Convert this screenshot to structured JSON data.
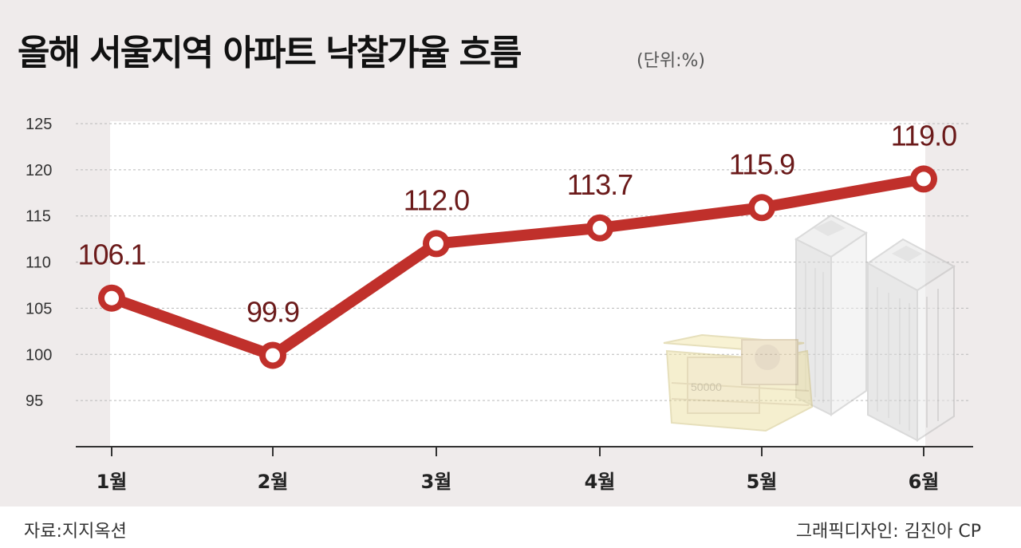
{
  "header": {
    "title": "올해 서울지역 아파트 낙찰가율 흐름",
    "unit": "(단위:%)"
  },
  "footer": {
    "source": "자료:지지옥션",
    "credit": "그래픽디자인: 김진아 CP"
  },
  "colors": {
    "line": "#c0302b",
    "value_label": "#6b1a1a",
    "panel_bg": "#efebeb",
    "plot_bg": "#ffffff",
    "axis": "#333333",
    "grid": "#b9b9b9"
  },
  "chart_data": {
    "type": "line",
    "title": "올해 서울지역 아파트 낙찰가율 흐름",
    "categories": [
      "1월",
      "2월",
      "3월",
      "4월",
      "5월",
      "6월"
    ],
    "series": [
      {
        "values": [
          106.1,
          99.9,
          112.0,
          113.7,
          115.9,
          119.0
        ]
      }
    ],
    "value_labels": [
      "106.1",
      "99.9",
      "112.0",
      "113.7",
      "115.9",
      "119.0"
    ],
    "y_ticks": [
      95,
      100,
      105,
      110,
      115,
      120,
      125
    ],
    "ylim": [
      90,
      125
    ],
    "grid": true
  },
  "decorations": [
    "office-buildings-icon",
    "cash-stack-icon"
  ]
}
